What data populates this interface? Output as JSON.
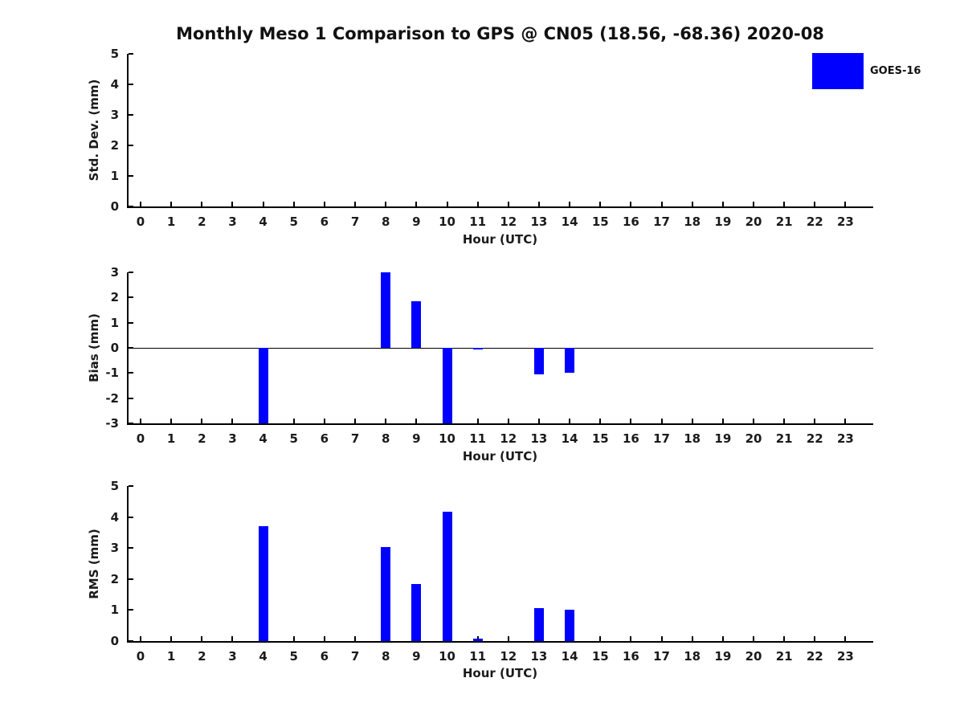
{
  "title": "Monthly Meso 1 Comparison to GPS @ CN05 (18.56, -68.36) 2020-08",
  "legend": {
    "label": "GOES-16",
    "color": "#0000FF",
    "position": "upper-right"
  },
  "colors": {
    "bar": "#0000FF",
    "axis": "#000000",
    "text": "#1a1a1a",
    "background": "#ffffff"
  },
  "chart_data": [
    {
      "type": "bar",
      "panel": "std-dev",
      "title": "",
      "xlabel": "Hour (UTC)",
      "ylabel": "Std. Dev. (mm)",
      "categories": [
        "0",
        "1",
        "2",
        "3",
        "4",
        "5",
        "6",
        "7",
        "8",
        "9",
        "10",
        "11",
        "12",
        "13",
        "14",
        "15",
        "16",
        "17",
        "18",
        "19",
        "20",
        "21",
        "22",
        "23"
      ],
      "series": [
        {
          "name": "GOES-16",
          "values": [
            0,
            0,
            0,
            0,
            0,
            0,
            0,
            0,
            0,
            0,
            0,
            0,
            0,
            0,
            0,
            0,
            0,
            0,
            0,
            0,
            0,
            0,
            0,
            0
          ]
        }
      ],
      "ylim": [
        0,
        5
      ],
      "yticks": [
        0,
        1,
        2,
        3,
        4,
        5
      ],
      "grid": false,
      "zero_line": false
    },
    {
      "type": "bar",
      "panel": "bias",
      "title": "",
      "xlabel": "Hour (UTC)",
      "ylabel": "Bias (mm)",
      "categories": [
        "0",
        "1",
        "2",
        "3",
        "4",
        "5",
        "6",
        "7",
        "8",
        "9",
        "10",
        "11",
        "12",
        "13",
        "14",
        "15",
        "16",
        "17",
        "18",
        "19",
        "20",
        "21",
        "22",
        "23"
      ],
      "series": [
        {
          "name": "GOES-16",
          "values": [
            0,
            0,
            0,
            0,
            -3.7,
            0,
            0,
            0,
            3.03,
            1.85,
            -4.18,
            -0.07,
            0,
            -1.05,
            -1.0,
            0,
            0,
            0,
            0,
            0,
            0,
            0,
            0,
            0
          ]
        }
      ],
      "ylim": [
        -3,
        3
      ],
      "yticks": [
        -3,
        -2,
        -1,
        0,
        1,
        2,
        3
      ],
      "grid": false,
      "zero_line": true,
      "bars_clipped_to_ylim_at_hours": [
        4,
        10
      ]
    },
    {
      "type": "bar",
      "panel": "rms",
      "title": "",
      "xlabel": "Hour (UTC)",
      "ylabel": "RMS (mm)",
      "categories": [
        "0",
        "1",
        "2",
        "3",
        "4",
        "5",
        "6",
        "7",
        "8",
        "9",
        "10",
        "11",
        "12",
        "13",
        "14",
        "15",
        "16",
        "17",
        "18",
        "19",
        "20",
        "21",
        "22",
        "23"
      ],
      "series": [
        {
          "name": "GOES-16",
          "values": [
            0,
            0,
            0,
            0,
            3.7,
            0,
            0,
            0,
            3.03,
            1.85,
            4.18,
            0.07,
            0,
            1.05,
            1.0,
            0,
            0,
            0,
            0,
            0,
            0,
            0,
            0,
            0
          ]
        }
      ],
      "ylim": [
        0,
        5
      ],
      "yticks": [
        0,
        1,
        2,
        3,
        4,
        5
      ],
      "grid": false,
      "zero_line": false
    }
  ]
}
